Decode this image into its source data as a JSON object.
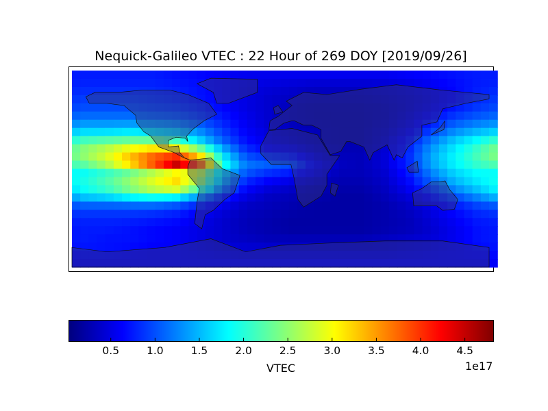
{
  "title": "Nequick-Galileo VTEC : 22 Hour of 269 DOY [2019/09/26]",
  "chart_data": {
    "type": "heatmap",
    "title": "Nequick-Galileo VTEC : 22 Hour of 269 DOY [2019/09/26]",
    "projection": "cylindrical (lon -180..180, lat -90..90) with coastlines and country borders",
    "colormap": "jet",
    "value_unit_multiplier": "1e17",
    "clim": [
      0.03,
      4.82
    ],
    "lon": [
      -170,
      -150,
      -130,
      -110,
      -90,
      -70,
      -50,
      -30,
      -10,
      10,
      30,
      50,
      70,
      90,
      110,
      130,
      150,
      170
    ],
    "lat": [
      85,
      75,
      65,
      55,
      45,
      35,
      25,
      15,
      5,
      -5,
      -15,
      -25,
      -35,
      -45,
      -55,
      -65,
      -75,
      -85
    ],
    "values": [
      [
        0.75,
        0.75,
        0.75,
        0.75,
        0.7,
        0.65,
        0.6,
        0.55,
        0.55,
        0.55,
        0.55,
        0.55,
        0.55,
        0.55,
        0.6,
        0.65,
        0.7,
        0.75
      ],
      [
        0.8,
        0.8,
        0.8,
        0.8,
        0.75,
        0.7,
        0.6,
        0.5,
        0.45,
        0.4,
        0.35,
        0.35,
        0.35,
        0.4,
        0.45,
        0.55,
        0.65,
        0.75
      ],
      [
        0.9,
        0.9,
        0.9,
        0.85,
        0.8,
        0.7,
        0.6,
        0.5,
        0.4,
        0.35,
        0.3,
        0.3,
        0.3,
        0.35,
        0.4,
        0.5,
        0.65,
        0.8
      ],
      [
        1.0,
        1.0,
        1.0,
        0.95,
        0.9,
        0.8,
        0.65,
        0.5,
        0.4,
        0.3,
        0.25,
        0.25,
        0.25,
        0.3,
        0.4,
        0.55,
        0.75,
        0.9
      ],
      [
        1.2,
        1.2,
        1.2,
        1.15,
        1.1,
        0.95,
        0.75,
        0.55,
        0.4,
        0.3,
        0.25,
        0.25,
        0.25,
        0.3,
        0.45,
        0.7,
        0.95,
        1.1
      ],
      [
        1.6,
        1.6,
        1.65,
        1.6,
        1.5,
        1.25,
        0.9,
        0.6,
        0.45,
        0.35,
        0.3,
        0.25,
        0.25,
        0.35,
        0.55,
        0.9,
        1.25,
        1.45
      ],
      [
        2.2,
        2.3,
        2.4,
        2.4,
        2.2,
        1.7,
        1.1,
        0.7,
        0.5,
        0.4,
        0.3,
        0.25,
        0.25,
        0.4,
        0.7,
        1.2,
        1.6,
        1.9
      ],
      [
        2.6,
        2.9,
        3.3,
        3.6,
        3.6,
        2.8,
        1.6,
        0.9,
        0.7,
        0.6,
        0.4,
        0.3,
        0.3,
        0.45,
        0.8,
        1.4,
        1.8,
        2.2
      ],
      [
        2.3,
        2.7,
        3.3,
        4.0,
        4.7,
        4.0,
        2.0,
        1.2,
        1.1,
        1.0,
        0.6,
        0.35,
        0.3,
        0.45,
        0.8,
        1.4,
        1.8,
        2.1
      ],
      [
        1.8,
        2.0,
        2.2,
        2.5,
        2.8,
        2.6,
        1.6,
        1.0,
        0.8,
        0.7,
        0.5,
        0.3,
        0.3,
        0.4,
        0.7,
        1.2,
        1.6,
        1.8
      ],
      [
        2.0,
        2.3,
        2.7,
        3.1,
        3.4,
        2.6,
        1.4,
        0.7,
        0.5,
        0.4,
        0.3,
        0.25,
        0.25,
        0.35,
        0.6,
        1.0,
        1.4,
        1.7
      ],
      [
        1.6,
        1.7,
        1.9,
        2.0,
        1.9,
        1.4,
        0.8,
        0.5,
        0.35,
        0.3,
        0.25,
        0.2,
        0.2,
        0.3,
        0.45,
        0.7,
        1.0,
        1.3
      ],
      [
        1.0,
        1.0,
        1.0,
        1.0,
        0.9,
        0.7,
        0.5,
        0.35,
        0.3,
        0.25,
        0.2,
        0.2,
        0.2,
        0.25,
        0.35,
        0.5,
        0.7,
        0.9
      ],
      [
        0.8,
        0.8,
        0.8,
        0.75,
        0.7,
        0.55,
        0.4,
        0.3,
        0.25,
        0.2,
        0.2,
        0.2,
        0.2,
        0.25,
        0.3,
        0.45,
        0.6,
        0.75
      ],
      [
        0.75,
        0.75,
        0.7,
        0.65,
        0.6,
        0.5,
        0.4,
        0.3,
        0.25,
        0.2,
        0.2,
        0.2,
        0.2,
        0.25,
        0.3,
        0.4,
        0.55,
        0.7
      ],
      [
        0.75,
        0.7,
        0.7,
        0.65,
        0.6,
        0.5,
        0.4,
        0.35,
        0.3,
        0.3,
        0.3,
        0.3,
        0.3,
        0.35,
        0.4,
        0.45,
        0.55,
        0.7
      ],
      [
        0.7,
        0.7,
        0.65,
        0.6,
        0.6,
        0.55,
        0.5,
        0.45,
        0.45,
        0.45,
        0.45,
        0.45,
        0.45,
        0.45,
        0.5,
        0.55,
        0.6,
        0.65
      ],
      [
        0.6,
        0.6,
        0.6,
        0.6,
        0.6,
        0.6,
        0.6,
        0.6,
        0.6,
        0.6,
        0.6,
        0.6,
        0.6,
        0.6,
        0.6,
        0.6,
        0.6,
        0.6
      ]
    ],
    "colorbar": {
      "orientation": "horizontal",
      "ticks": [
        "0.5",
        "1.0",
        "1.5",
        "2.0",
        "2.5",
        "3.0",
        "3.5",
        "4.0",
        "4.5"
      ],
      "label": "VTEC",
      "exponent_label": "1e17"
    }
  }
}
